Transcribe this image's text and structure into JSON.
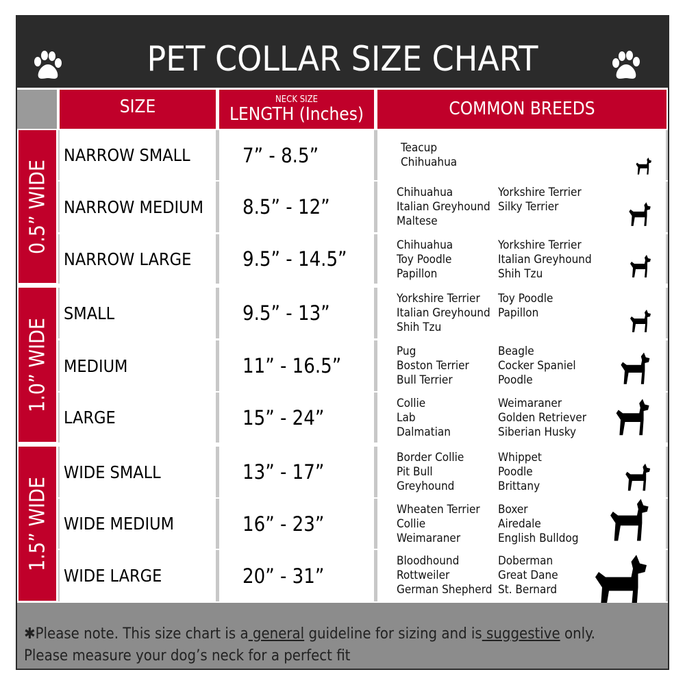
{
  "title": "PET COLLAR SIZE CHART",
  "header": {
    "size": "SIZE",
    "length_small": "NECK SIZE",
    "length": "LENGTH (Inches)",
    "breeds": "COMMON BREEDS"
  },
  "groups": [
    "0.5” WIDE",
    "1.0” WIDE",
    "1.5” WIDE"
  ],
  "rows": [
    {
      "size": "NARROW SMALL",
      "length": "7” - 8.5”",
      "col1": [
        "Teacup",
        "Chihuahua"
      ],
      "col2": []
    },
    {
      "size": "NARROW MEDIUM",
      "length": "8.5” - 12”",
      "col1": [
        "Chihuahua",
        "Italian Greyhound",
        "Maltese"
      ],
      "col2": [
        "Yorkshire Terrier",
        "Silky Terrier"
      ]
    },
    {
      "size": "NARROW LARGE",
      "length": "9.5” - 14.5”",
      "col1": [
        "Chihuahua",
        "Toy Poodle",
        "Papillon"
      ],
      "col2": [
        "Yorkshire Terrier",
        "Italian Greyhound",
        "Shih Tzu"
      ]
    },
    {
      "size": "SMALL",
      "length": "9.5” - 13”",
      "col1": [
        "Yorkshire Terrier",
        "Italian Greyhound",
        "Shih Tzu"
      ],
      "col2": [
        "Toy Poodle",
        "Papillon"
      ]
    },
    {
      "size": "MEDIUM",
      "length": "11” - 16.5”",
      "col1": [
        "Pug",
        "Boston Terrier",
        "Bull Terrier"
      ],
      "col2": [
        "Beagle",
        "Cocker Spaniel",
        "Poodle"
      ]
    },
    {
      "size": "LARGE",
      "length": "15” - 24”",
      "col1": [
        "Collie",
        "Lab",
        "Dalmatian"
      ],
      "col2": [
        "Weimaraner",
        "Golden Retriever",
        "Siberian Husky"
      ]
    },
    {
      "size": "WIDE SMALL",
      "length": "13” - 17”",
      "col1": [
        "Border Collie",
        "Pit Bull",
        "Greyhound"
      ],
      "col2": [
        "Whippet",
        "Poodle",
        "Brittany"
      ]
    },
    {
      "size": "WIDE MEDIUM",
      "length": "16” - 23”",
      "col1": [
        "Wheaten Terrier",
        "Collie",
        "Weimaraner"
      ],
      "col2": [
        "Boxer",
        "Airedale",
        "English Bulldog"
      ]
    },
    {
      "size": "WIDE LARGE",
      "length": "20” - 31”",
      "col1": [
        "Bloodhound",
        "Rottweiler",
        "German Shepherd"
      ],
      "col2": [
        "Doberman",
        "Great Dane",
        "St. Bernard"
      ]
    }
  ],
  "footer": {
    "a": "✱Please note. This size chart is a",
    "b": " general",
    "c": " guideline for sizing and is",
    "d": " suggestive",
    "e": " only.",
    "line2": "Please measure your dog’s neck for a perfect fit"
  },
  "colors": {
    "red": "#c0002a",
    "dark": "#2b2b2b",
    "gray": "#8c8c8c"
  },
  "icons": [
    "paw-icon",
    "dog-silhouette-icon"
  ]
}
